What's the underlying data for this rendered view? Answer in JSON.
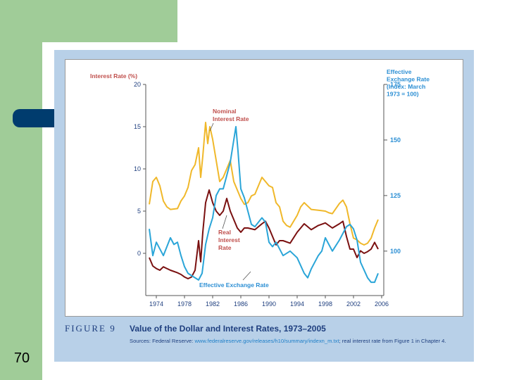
{
  "slide": {
    "number": "70"
  },
  "figure": {
    "label": "FIGURE 9",
    "title": "Value of the Dollar and Interest Rates, 1973–2005",
    "sources_prefix": "Sources: Federal Reserve: ",
    "sources_url": "www.federalreserve.gov/releases/h10/summary/indexn_m.txt",
    "sources_suffix": "; real interest rate from Figure 1 in Chapter 4."
  },
  "colors": {
    "nominal": "#f0b82a",
    "real": "#7a1010",
    "exchange": "#2aa5d8",
    "axis_text": "#c0504d",
    "right_axis_text": "#2c8fd4"
  },
  "chart_data": {
    "type": "line",
    "ylabel_left": "Interest Rate (%)",
    "ylabel_right": [
      "Effective",
      "Exchange Rate",
      "(Index: March",
      "1973 = 100)"
    ],
    "ylim_left": [
      -5,
      20
    ],
    "ylim_right": [
      80,
      175
    ],
    "xlim": [
      1972.5,
      2006.3
    ],
    "x_ticks": [
      "1974",
      "1978",
      "1982",
      "1986",
      "1990",
      "1994",
      "1998",
      "2002",
      "2006"
    ],
    "y_ticks_left": [
      "20",
      "15",
      "10",
      "5",
      "0"
    ],
    "y_ticks_right": [
      "175",
      "150",
      "125",
      "100"
    ],
    "annotations": {
      "nominal": [
        "Nominal",
        "Interest Rate"
      ],
      "real": [
        "Real",
        "Interest",
        "Rate"
      ],
      "exchange": [
        "Effective Exchange Rate"
      ]
    },
    "series": [
      {
        "name": "Nominal Interest Rate",
        "axis": "left",
        "x": [
          1973.0,
          1973.5,
          1974.0,
          1974.5,
          1975.0,
          1975.5,
          1976.0,
          1977.0,
          1977.5,
          1978.0,
          1978.5,
          1979.0,
          1979.5,
          1980.0,
          1980.3,
          1980.6,
          1981.0,
          1981.3,
          1981.6,
          1982.0,
          1982.5,
          1983.0,
          1983.5,
          1984.0,
          1984.5,
          1985.0,
          1985.5,
          1986.0,
          1986.5,
          1987.0,
          1987.5,
          1988.0,
          1988.5,
          1989.0,
          1989.5,
          1990.0,
          1990.5,
          1991.0,
          1991.5,
          1992.0,
          1992.5,
          1993.0,
          1994.0,
          1994.5,
          1995.0,
          1995.5,
          1996.0,
          1997.0,
          1998.0,
          1998.5,
          1999.0,
          2000.0,
          2000.5,
          2001.0,
          2001.5,
          2002.0,
          2002.5,
          2003.0,
          2003.5,
          2004.0,
          2004.5,
          2005.0,
          2005.5
        ],
        "values": [
          5.8,
          8.5,
          9.0,
          8.0,
          6.2,
          5.5,
          5.2,
          5.3,
          6.2,
          6.8,
          7.8,
          9.8,
          10.5,
          12.5,
          9.0,
          11.5,
          15.5,
          13.0,
          15.0,
          13.5,
          11.0,
          8.5,
          9.0,
          10.0,
          11.0,
          8.5,
          7.5,
          6.5,
          5.8,
          6.0,
          6.8,
          7.0,
          8.0,
          9.0,
          8.5,
          8.0,
          7.8,
          6.0,
          5.5,
          3.8,
          3.3,
          3.1,
          4.5,
          5.5,
          6.0,
          5.6,
          5.2,
          5.1,
          5.0,
          4.8,
          4.7,
          5.9,
          6.3,
          5.5,
          3.5,
          1.8,
          1.6,
          1.2,
          1.0,
          1.2,
          1.8,
          3.0,
          4.0
        ]
      },
      {
        "name": "Real Interest Rate",
        "axis": "left",
        "x": [
          1973.0,
          1973.5,
          1974.0,
          1974.5,
          1975.0,
          1975.5,
          1976.0,
          1977.0,
          1977.5,
          1978.0,
          1978.5,
          1979.0,
          1979.5,
          1980.0,
          1980.3,
          1980.6,
          1981.0,
          1981.5,
          1982.0,
          1982.5,
          1983.0,
          1983.5,
          1984.0,
          1984.5,
          1985.0,
          1985.5,
          1986.0,
          1986.5,
          1987.0,
          1988.0,
          1989.0,
          1989.5,
          1990.0,
          1990.5,
          1991.0,
          1991.5,
          1992.0,
          1993.0,
          1994.0,
          1995.0,
          1996.0,
          1997.0,
          1998.0,
          1999.0,
          2000.0,
          2000.5,
          2001.0,
          2001.5,
          2002.0,
          2002.5,
          2003.0,
          2003.5,
          2004.0,
          2004.5,
          2005.0,
          2005.5
        ],
        "values": [
          -0.5,
          -1.5,
          -1.8,
          -2.0,
          -1.6,
          -1.8,
          -2.0,
          -2.3,
          -2.5,
          -2.8,
          -3.0,
          -2.8,
          -2.0,
          1.5,
          -1.0,
          2.5,
          6.0,
          7.5,
          6.0,
          5.0,
          4.5,
          5.0,
          6.5,
          5.0,
          4.0,
          3.0,
          2.5,
          3.0,
          3.0,
          2.8,
          3.5,
          3.8,
          3.0,
          2.0,
          1.0,
          1.5,
          1.5,
          1.2,
          2.5,
          3.5,
          2.8,
          3.3,
          3.6,
          3.0,
          3.5,
          3.8,
          2.0,
          0.5,
          0.5,
          -0.5,
          0.3,
          0.0,
          0.2,
          0.5,
          1.3,
          0.5
        ]
      },
      {
        "name": "Effective Exchange Rate",
        "axis": "right",
        "x": [
          1973.0,
          1973.5,
          1974.0,
          1975.0,
          1976.0,
          1976.5,
          1977.0,
          1977.5,
          1978.0,
          1978.5,
          1979.0,
          1980.0,
          1980.5,
          1981.0,
          1981.5,
          1982.0,
          1982.5,
          1983.0,
          1983.5,
          1984.0,
          1984.5,
          1985.0,
          1985.3,
          1985.6,
          1986.0,
          1986.5,
          1987.0,
          1987.5,
          1988.0,
          1988.5,
          1989.0,
          1989.5,
          1990.0,
          1990.5,
          1991.0,
          1992.0,
          1993.0,
          1994.0,
          1995.0,
          1995.5,
          1996.0,
          1997.0,
          1997.5,
          1998.0,
          1999.0,
          2000.0,
          2000.5,
          2001.0,
          2001.5,
          2002.0,
          2002.5,
          2003.0,
          2004.0,
          2004.5,
          2005.0,
          2005.5
        ],
        "values": [
          110,
          98,
          104,
          98,
          106,
          103,
          104,
          98,
          93,
          90,
          89,
          87,
          90,
          103,
          110,
          115,
          125,
          128,
          128,
          134,
          140,
          150,
          156,
          145,
          128,
          124,
          118,
          112,
          111,
          113,
          115,
          113,
          104,
          102,
          104,
          98,
          100,
          97,
          90,
          88,
          92,
          98,
          100,
          106,
          100,
          105,
          108,
          111,
          112,
          110,
          105,
          95,
          88,
          86,
          86,
          90
        ]
      }
    ]
  }
}
